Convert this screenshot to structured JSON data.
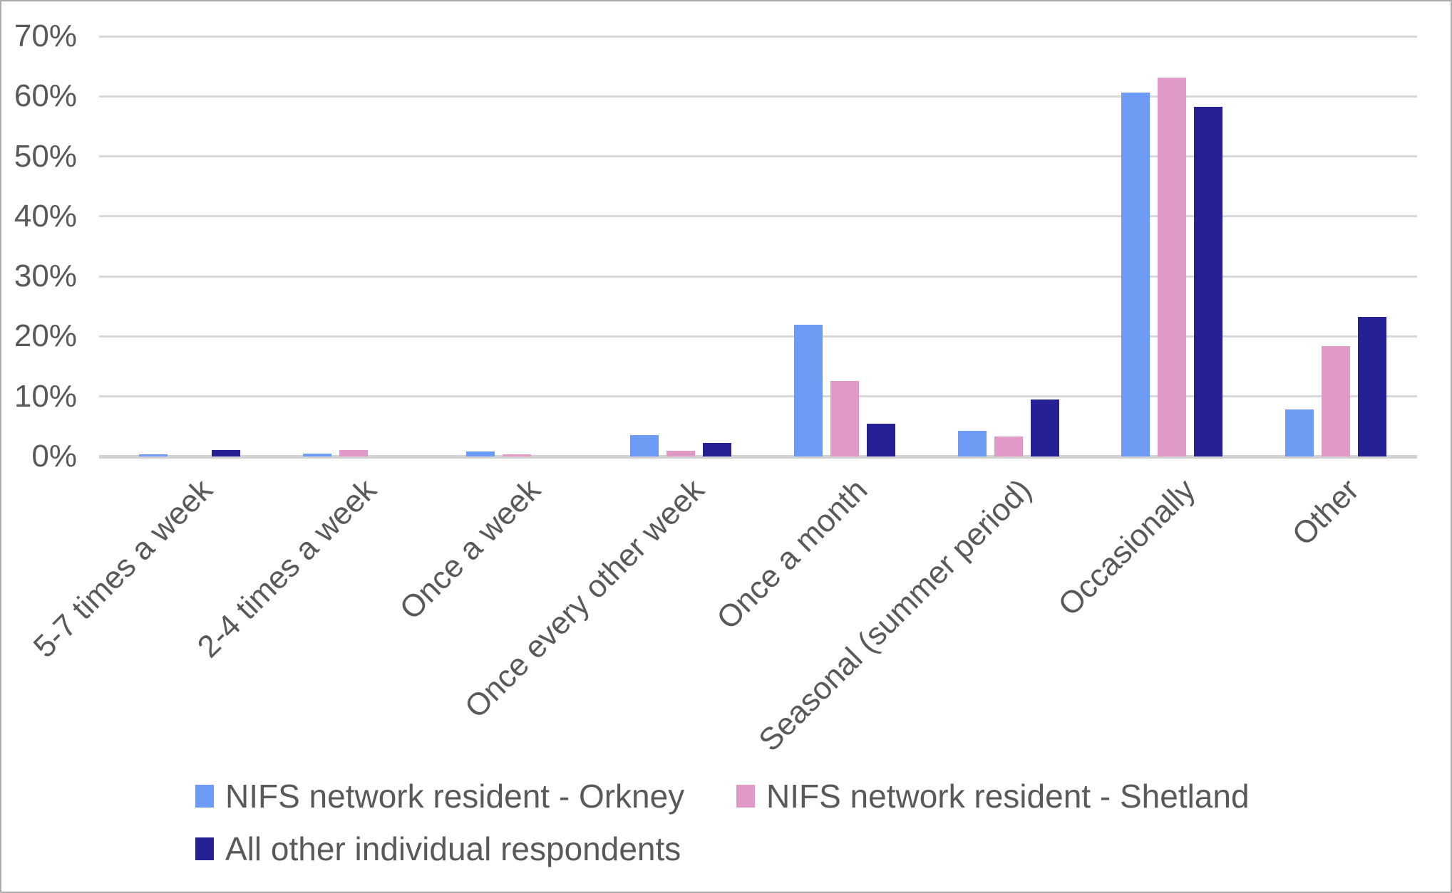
{
  "chart_data": {
    "type": "bar",
    "title": "",
    "xlabel": "",
    "ylabel": "",
    "categories": [
      "5-7 times a week",
      "2-4 times a week",
      "Once a week",
      "Once every other week",
      "Once a month",
      "Seasonal (summer period)",
      "Occasionally",
      "Other"
    ],
    "series": [
      {
        "name": "NIFS network resident - Orkney",
        "color": "#6d9af3",
        "values": [
          0.4,
          0.5,
          0.8,
          3.6,
          21.9,
          4.3,
          60.6,
          7.8
        ]
      },
      {
        "name": "NIFS network resident - Shetland",
        "color": "#e09ac8",
        "values": [
          0,
          1.1,
          0.4,
          0.9,
          12.6,
          3.3,
          63.1,
          18.4
        ]
      },
      {
        "name": "All other individual respondents",
        "color": "#252093",
        "values": [
          1.1,
          0,
          0,
          2.2,
          5.4,
          9.5,
          58.3,
          23.3
        ]
      }
    ],
    "ylim": [
      0,
      70
    ],
    "ytick_step": 10,
    "ytick_labels": [
      "0%",
      "10%",
      "20%",
      "30%",
      "40%",
      "50%",
      "60%",
      "70%"
    ],
    "grid": true,
    "legend_position": "bottom"
  },
  "colors": {
    "grid": "#d9d9d9",
    "axis": "#d2d2d2",
    "text": "#595959",
    "frame_border": "#ababab",
    "background": "#ffffff"
  }
}
